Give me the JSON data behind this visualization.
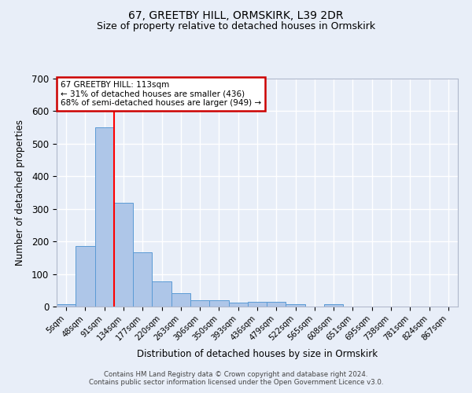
{
  "title1": "67, GREETBY HILL, ORMSKIRK, L39 2DR",
  "title2": "Size of property relative to detached houses in Ormskirk",
  "xlabel": "Distribution of detached houses by size in Ormskirk",
  "ylabel": "Number of detached properties",
  "bin_labels": [
    "5sqm",
    "48sqm",
    "91sqm",
    "134sqm",
    "177sqm",
    "220sqm",
    "263sqm",
    "306sqm",
    "350sqm",
    "393sqm",
    "436sqm",
    "479sqm",
    "522sqm",
    "565sqm",
    "608sqm",
    "651sqm",
    "695sqm",
    "738sqm",
    "781sqm",
    "824sqm",
    "867sqm"
  ],
  "bar_heights": [
    8,
    187,
    550,
    318,
    167,
    78,
    42,
    20,
    20,
    13,
    15,
    15,
    8,
    0,
    7,
    0,
    0,
    0,
    0,
    0,
    0
  ],
  "bar_color": "#aec6e8",
  "bar_edge_color": "#5b9bd5",
  "bg_color": "#e8eef8",
  "grid_color": "#ffffff",
  "annotation_text": "67 GREETBY HILL: 113sqm\n← 31% of detached houses are smaller (436)\n68% of semi-detached houses are larger (949) →",
  "annotation_box_color": "#ffffff",
  "annotation_box_edge": "#cc0000",
  "footnote1": "Contains HM Land Registry data © Crown copyright and database right 2024.",
  "footnote2": "Contains public sector information licensed under the Open Government Licence v3.0.",
  "ylim": [
    0,
    700
  ],
  "yticks": [
    0,
    100,
    200,
    300,
    400,
    500,
    600,
    700
  ],
  "red_line_x": 2.5
}
